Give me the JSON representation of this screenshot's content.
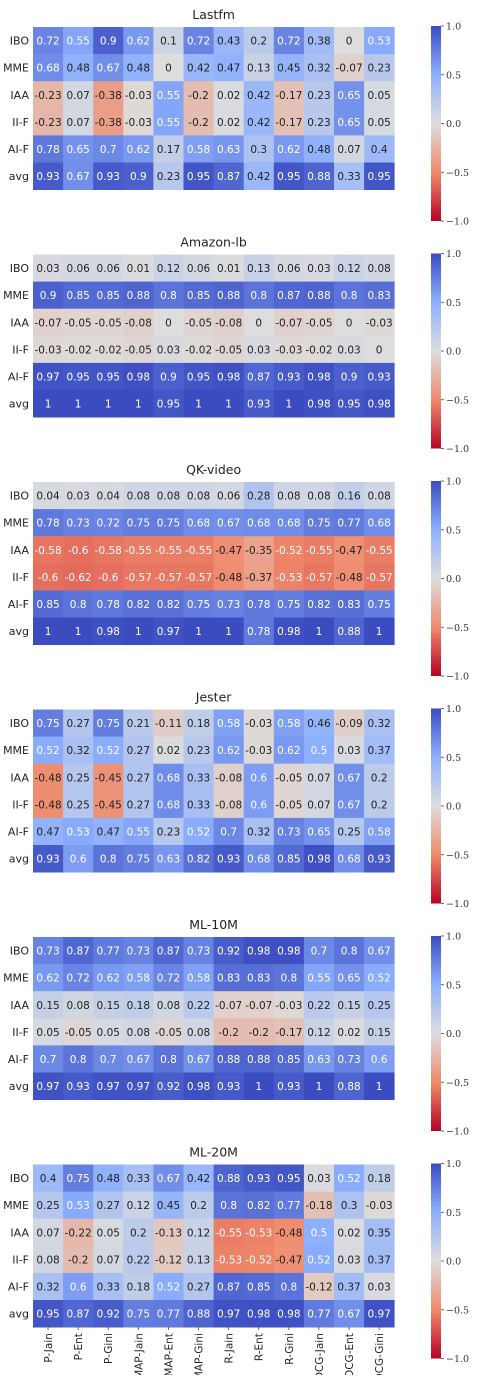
{
  "chart_data": {
    "type": "heatmap",
    "columns": [
      "P-Jain",
      "P-Ent",
      "P-Gini",
      "MAP-Jain",
      "MAP-Ent",
      "MAP-Gini",
      "R-Jain",
      "R-Ent",
      "R-Gini",
      "NDCG-Jain",
      "NDCG-Ent",
      "NDCG-Gini"
    ],
    "rows": [
      "IBO",
      "MME",
      "IAA",
      "II-F",
      "AI-F",
      "avg"
    ],
    "colorbar": {
      "min": -1.0,
      "max": 1.0,
      "ticks": [
        "1.0",
        "0.5",
        "0.0",
        "−0.5",
        "−1.0"
      ],
      "tick_values": [
        1.0,
        0.5,
        0.0,
        -0.5,
        -1.0
      ]
    },
    "cmap": {
      "low": "#b40426",
      "mid": "#dddddd",
      "high": "#3b4cc0"
    },
    "panels": [
      {
        "title": "Lastfm",
        "values": [
          [
            "0.72",
            "0.55",
            "0.9",
            "0.62",
            "0.1",
            "0.72",
            "0.43",
            "0.2",
            "0.72",
            "0.38",
            "0",
            "0.53"
          ],
          [
            "0.68",
            "0.48",
            "0.67",
            "0.48",
            "0",
            "0.42",
            "0.47",
            "0.13",
            "0.45",
            "0.32",
            "-0.07",
            "0.23"
          ],
          [
            "-0.23",
            "0.07",
            "-0.38",
            "-0.03",
            "0.55",
            "-0.2",
            "0.02",
            "0.42",
            "-0.17",
            "0.23",
            "0.65",
            "0.05"
          ],
          [
            "-0.23",
            "0.07",
            "-0.38",
            "-0.03",
            "0.55",
            "-0.2",
            "0.02",
            "0.42",
            "-0.17",
            "0.23",
            "0.65",
            "0.05"
          ],
          [
            "0.78",
            "0.65",
            "0.7",
            "0.62",
            "0.17",
            "0.58",
            "0.63",
            "0.3",
            "0.62",
            "0.48",
            "0.07",
            "0.4"
          ],
          [
            "0.93",
            "0.67",
            "0.93",
            "0.9",
            "0.23",
            "0.95",
            "0.87",
            "0.42",
            "0.95",
            "0.88",
            "0.33",
            "0.95"
          ]
        ]
      },
      {
        "title": "Amazon-lb",
        "values": [
          [
            "0.03",
            "0.06",
            "0.06",
            "0.01",
            "0.12",
            "0.06",
            "0.01",
            "0.13",
            "0.06",
            "0.03",
            "0.12",
            "0.08"
          ],
          [
            "0.9",
            "0.85",
            "0.85",
            "0.88",
            "0.8",
            "0.85",
            "0.88",
            "0.8",
            "0.87",
            "0.88",
            "0.8",
            "0.83"
          ],
          [
            "-0.07",
            "-0.05",
            "-0.05",
            "-0.08",
            "0",
            "-0.05",
            "-0.08",
            "0",
            "-0.07",
            "-0.05",
            "0",
            "-0.03"
          ],
          [
            "-0.03",
            "-0.02",
            "-0.02",
            "-0.05",
            "0.03",
            "-0.02",
            "-0.05",
            "0.03",
            "-0.03",
            "-0.02",
            "0.03",
            "0"
          ],
          [
            "0.97",
            "0.95",
            "0.95",
            "0.98",
            "0.9",
            "0.95",
            "0.98",
            "0.87",
            "0.93",
            "0.98",
            "0.9",
            "0.93"
          ],
          [
            "1",
            "1",
            "1",
            "1",
            "0.95",
            "1",
            "1",
            "0.93",
            "1",
            "0.98",
            "0.95",
            "0.98"
          ]
        ]
      },
      {
        "title": "QK-video",
        "values": [
          [
            "0.04",
            "0.03",
            "0.04",
            "0.08",
            "0.08",
            "0.08",
            "0.06",
            "0.28",
            "0.08",
            "0.08",
            "0.16",
            "0.08"
          ],
          [
            "0.78",
            "0.73",
            "0.72",
            "0.75",
            "0.75",
            "0.68",
            "0.67",
            "0.68",
            "0.68",
            "0.75",
            "0.77",
            "0.68"
          ],
          [
            "-0.58",
            "-0.6",
            "-0.58",
            "-0.55",
            "-0.55",
            "-0.55",
            "-0.47",
            "-0.35",
            "-0.52",
            "-0.55",
            "-0.47",
            "-0.55"
          ],
          [
            "-0.6",
            "-0.62",
            "-0.6",
            "-0.57",
            "-0.57",
            "-0.57",
            "-0.48",
            "-0.37",
            "-0.53",
            "-0.57",
            "-0.48",
            "-0.57"
          ],
          [
            "0.85",
            "0.8",
            "0.78",
            "0.82",
            "0.82",
            "0.75",
            "0.73",
            "0.78",
            "0.75",
            "0.82",
            "0.83",
            "0.75"
          ],
          [
            "1",
            "1",
            "0.98",
            "1",
            "0.97",
            "1",
            "1",
            "0.78",
            "0.98",
            "1",
            "0.88",
            "1"
          ]
        ]
      },
      {
        "title": "Jester",
        "values": [
          [
            "0.75",
            "0.27",
            "0.75",
            "0.21",
            "-0.11",
            "0.18",
            "0.58",
            "-0.03",
            "0.58",
            "0.46",
            "-0.09",
            "0.32"
          ],
          [
            "0.52",
            "0.32",
            "0.52",
            "0.27",
            "0.02",
            "0.23",
            "0.62",
            "-0.03",
            "0.62",
            "0.5",
            "0.03",
            "0.37"
          ],
          [
            "-0.48",
            "0.25",
            "-0.45",
            "0.27",
            "0.68",
            "0.33",
            "-0.08",
            "0.6",
            "-0.05",
            "0.07",
            "0.67",
            "0.2"
          ],
          [
            "-0.48",
            "0.25",
            "-0.45",
            "0.27",
            "0.68",
            "0.33",
            "-0.08",
            "0.6",
            "-0.05",
            "0.07",
            "0.67",
            "0.2"
          ],
          [
            "0.47",
            "0.53",
            "0.47",
            "0.55",
            "0.23",
            "0.52",
            "0.7",
            "0.32",
            "0.73",
            "0.65",
            "0.25",
            "0.58"
          ],
          [
            "0.93",
            "0.6",
            "0.8",
            "0.75",
            "0.63",
            "0.82",
            "0.93",
            "0.68",
            "0.85",
            "0.98",
            "0.68",
            "0.93"
          ]
        ]
      },
      {
        "title": "ML-10M",
        "values": [
          [
            "0.73",
            "0.87",
            "0.77",
            "0.73",
            "0.87",
            "0.73",
            "0.92",
            "0.98",
            "0.98",
            "0.7",
            "0.8",
            "0.67"
          ],
          [
            "0.62",
            "0.72",
            "0.62",
            "0.58",
            "0.72",
            "0.58",
            "0.83",
            "0.83",
            "0.8",
            "0.55",
            "0.65",
            "0.52"
          ],
          [
            "0.15",
            "0.08",
            "0.15",
            "0.18",
            "0.08",
            "0.22",
            "-0.07",
            "-0.07",
            "-0.03",
            "0.22",
            "0.15",
            "0.25"
          ],
          [
            "0.05",
            "-0.05",
            "0.05",
            "0.08",
            "-0.05",
            "0.08",
            "-0.2",
            "-0.2",
            "-0.17",
            "0.12",
            "0.02",
            "0.15"
          ],
          [
            "0.7",
            "0.8",
            "0.7",
            "0.67",
            "0.8",
            "0.67",
            "0.88",
            "0.88",
            "0.85",
            "0.63",
            "0.73",
            "0.6"
          ],
          [
            "0.97",
            "0.93",
            "0.97",
            "0.97",
            "0.92",
            "0.98",
            "0.93",
            "1",
            "0.93",
            "1",
            "0.88",
            "1"
          ]
        ]
      },
      {
        "title": "ML-20M",
        "values": [
          [
            "0.4",
            "0.75",
            "0.48",
            "0.33",
            "0.67",
            "0.42",
            "0.88",
            "0.93",
            "0.95",
            "0.03",
            "0.52",
            "0.18"
          ],
          [
            "0.25",
            "0.53",
            "0.27",
            "0.12",
            "0.45",
            "0.2",
            "0.8",
            "0.82",
            "0.77",
            "-0.18",
            "0.3",
            "-0.03"
          ],
          [
            "0.07",
            "-0.22",
            "0.05",
            "0.2",
            "-0.13",
            "0.12",
            "-0.55",
            "-0.53",
            "-0.48",
            "0.5",
            "0.02",
            "0.35"
          ],
          [
            "0.08",
            "-0.2",
            "0.07",
            "0.22",
            "-0.12",
            "0.13",
            "-0.53",
            "-0.52",
            "-0.47",
            "0.52",
            "0.03",
            "0.37"
          ],
          [
            "0.32",
            "0.6",
            "0.33",
            "0.18",
            "0.52",
            "0.27",
            "0.87",
            "0.85",
            "0.8",
            "-0.12",
            "0.37",
            "0.03"
          ],
          [
            "0.95",
            "0.87",
            "0.92",
            "0.75",
            "0.77",
            "0.88",
            "0.97",
            "0.98",
            "0.98",
            "0.77",
            "0.67",
            "0.97"
          ]
        ]
      }
    ]
  }
}
